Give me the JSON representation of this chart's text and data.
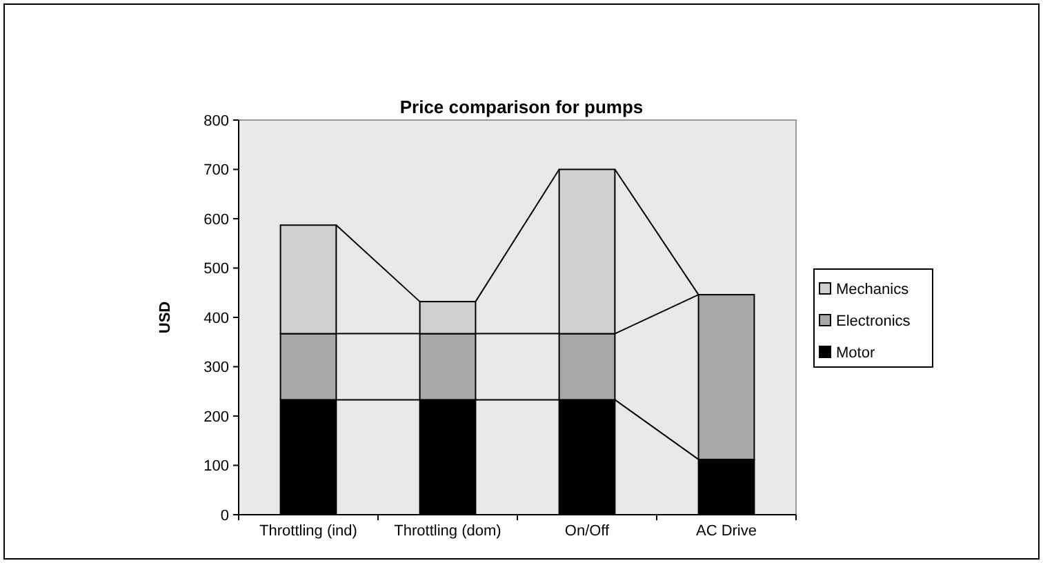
{
  "chart_data": {
    "type": "bar",
    "title": "Price comparison for pumps",
    "ylabel": "USD",
    "stacked": true,
    "categories": [
      "Throttling (ind)",
      "Throttling (dom)",
      "On/Off",
      "AC Drive"
    ],
    "series": [
      {
        "name": "Motor",
        "color": "#000000",
        "values": [
          233,
          233,
          233,
          112
        ]
      },
      {
        "name": "Electronics",
        "color": "#a8a8a8",
        "values": [
          134,
          134,
          134,
          334
        ]
      },
      {
        "name": "Mechanics",
        "color": "#d0d0d0",
        "values": [
          220,
          65,
          333,
          0
        ]
      }
    ],
    "ylim": [
      0,
      800
    ],
    "yticks": [
      0,
      100,
      200,
      300,
      400,
      500,
      600,
      700,
      800
    ],
    "grid": false,
    "legend": "right"
  }
}
